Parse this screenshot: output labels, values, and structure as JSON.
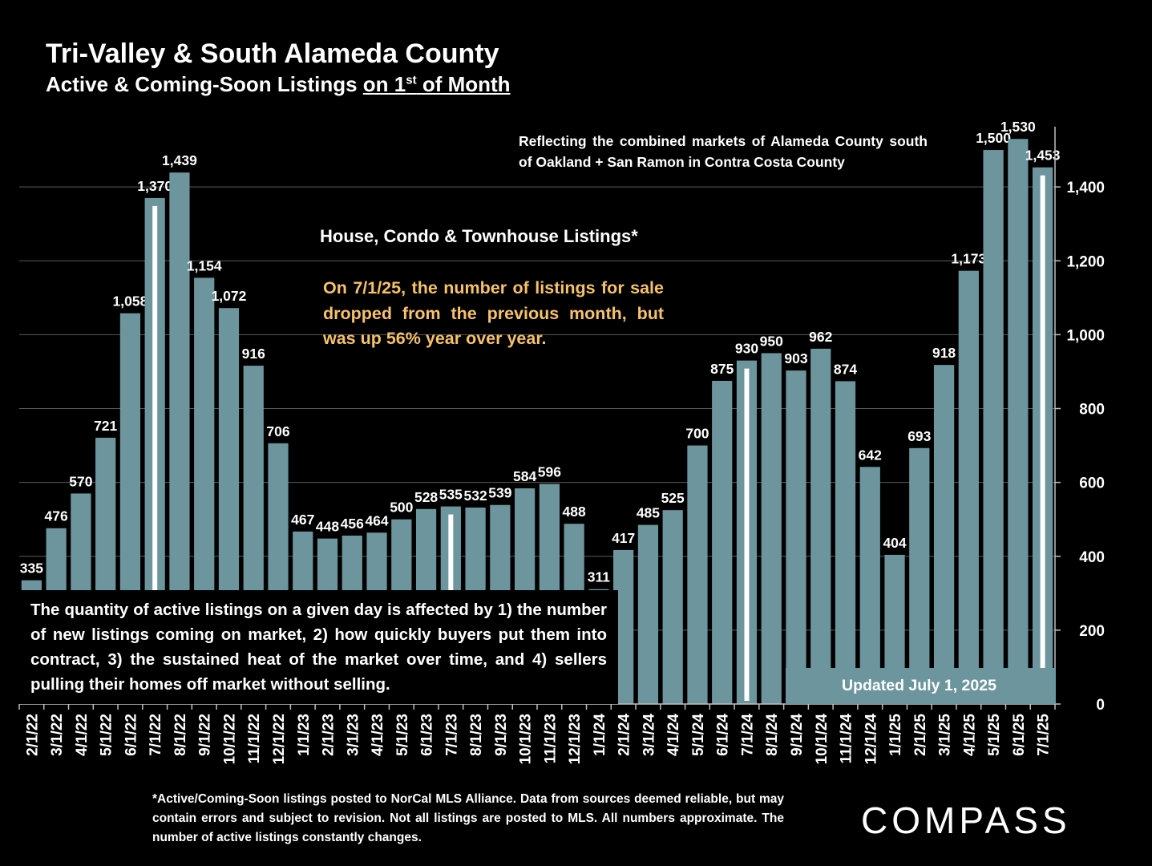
{
  "chart_data": {
    "type": "bar",
    "title": "Tri-Valley & South Alameda County",
    "subtitle": "Active & Coming-Soon Listings on 1st of Month",
    "categories": [
      "2/1/22",
      "3/1/22",
      "4/1/22",
      "5/1/22",
      "6/1/22",
      "7/1/22",
      "8/1/22",
      "9/1/22",
      "10/1/22",
      "11/1/22",
      "12/1/22",
      "1/1/23",
      "2/1/23",
      "3/1/23",
      "4/1/23",
      "5/1/23",
      "6/1/23",
      "7/1/23",
      "8/1/23",
      "9/1/23",
      "10/1/23",
      "11/1/23",
      "12/1/23",
      "1/1/24",
      "2/1/24",
      "3/1/24",
      "4/1/24",
      "5/1/24",
      "6/1/24",
      "7/1/24",
      "8/1/24",
      "9/1/24",
      "10/1/24",
      "11/1/24",
      "12/1/24",
      "1/1/25",
      "2/1/25",
      "3/1/25",
      "4/1/25",
      "5/1/25",
      "6/1/25",
      "7/1/25"
    ],
    "values": [
      335,
      476,
      570,
      721,
      1058,
      1370,
      1439,
      1154,
      1072,
      916,
      706,
      467,
      448,
      456,
      464,
      500,
      528,
      535,
      532,
      539,
      584,
      596,
      488,
      311,
      417,
      485,
      525,
      700,
      875,
      930,
      950,
      903,
      962,
      874,
      642,
      404,
      693,
      918,
      1173,
      1500,
      1530,
      1453
    ],
    "value_labels": [
      "335",
      "476",
      "570",
      "721",
      "1,058",
      "1,370",
      "1,439",
      "1,154",
      "1,072",
      "916",
      "706",
      "467",
      "448",
      "456",
      "464",
      "500",
      "528",
      "535",
      "532",
      "539",
      "584",
      "596",
      "488",
      "311",
      "417",
      "485",
      "525",
      "700",
      "875",
      "930",
      "950",
      "903",
      "962",
      "874",
      "642",
      "404",
      "693",
      "918",
      "1,173",
      "1,500",
      "1,530",
      "1,453"
    ],
    "highlighted_categories": [
      "7/1/22",
      "7/1/23",
      "7/1/24",
      "7/1/25"
    ],
    "ylim": [
      0,
      1600
    ],
    "y_ticks": [
      0,
      200,
      400,
      600,
      800,
      1000,
      1200,
      1400
    ],
    "y_tick_labels": [
      "0",
      "200",
      "400",
      "600",
      "800",
      "1,000",
      "1,200",
      "1,400"
    ],
    "y_axis_side": "right",
    "grid": true,
    "bar_color": "#6d959d",
    "highlight_color": "#ffffff",
    "background": "#000000"
  },
  "notes": {
    "markets": "Reflecting the combined markets of Alameda County south of Oakland + San Ramon in Contra Costa County",
    "listing_type": "House, Condo & Townhouse Listings*",
    "highlight": "On 7/1/25, the number of listings for sale dropped from the previous month, but was up 56% year over year.",
    "explain": "The quantity of active listings on a given day is affected by 1) the number of new listings coming on market, 2) how quickly buyers put them into contract, 3) the sustained heat of the market over time, and 4) sellers pulling their homes off market without selling.",
    "updated": "Updated July 1, 2025",
    "footnote": "*Active/Coming-Soon listings posted to NorCal MLS Alliance.  Data from sources deemed reliable, but may contain errors and subject to revision.  Not all listings are posted to MLS. All numbers approximate. The number of active listings constantly changes."
  },
  "brand": {
    "logo": "COMPASS"
  },
  "colors": {
    "highlight_text": "#f6c26b"
  }
}
